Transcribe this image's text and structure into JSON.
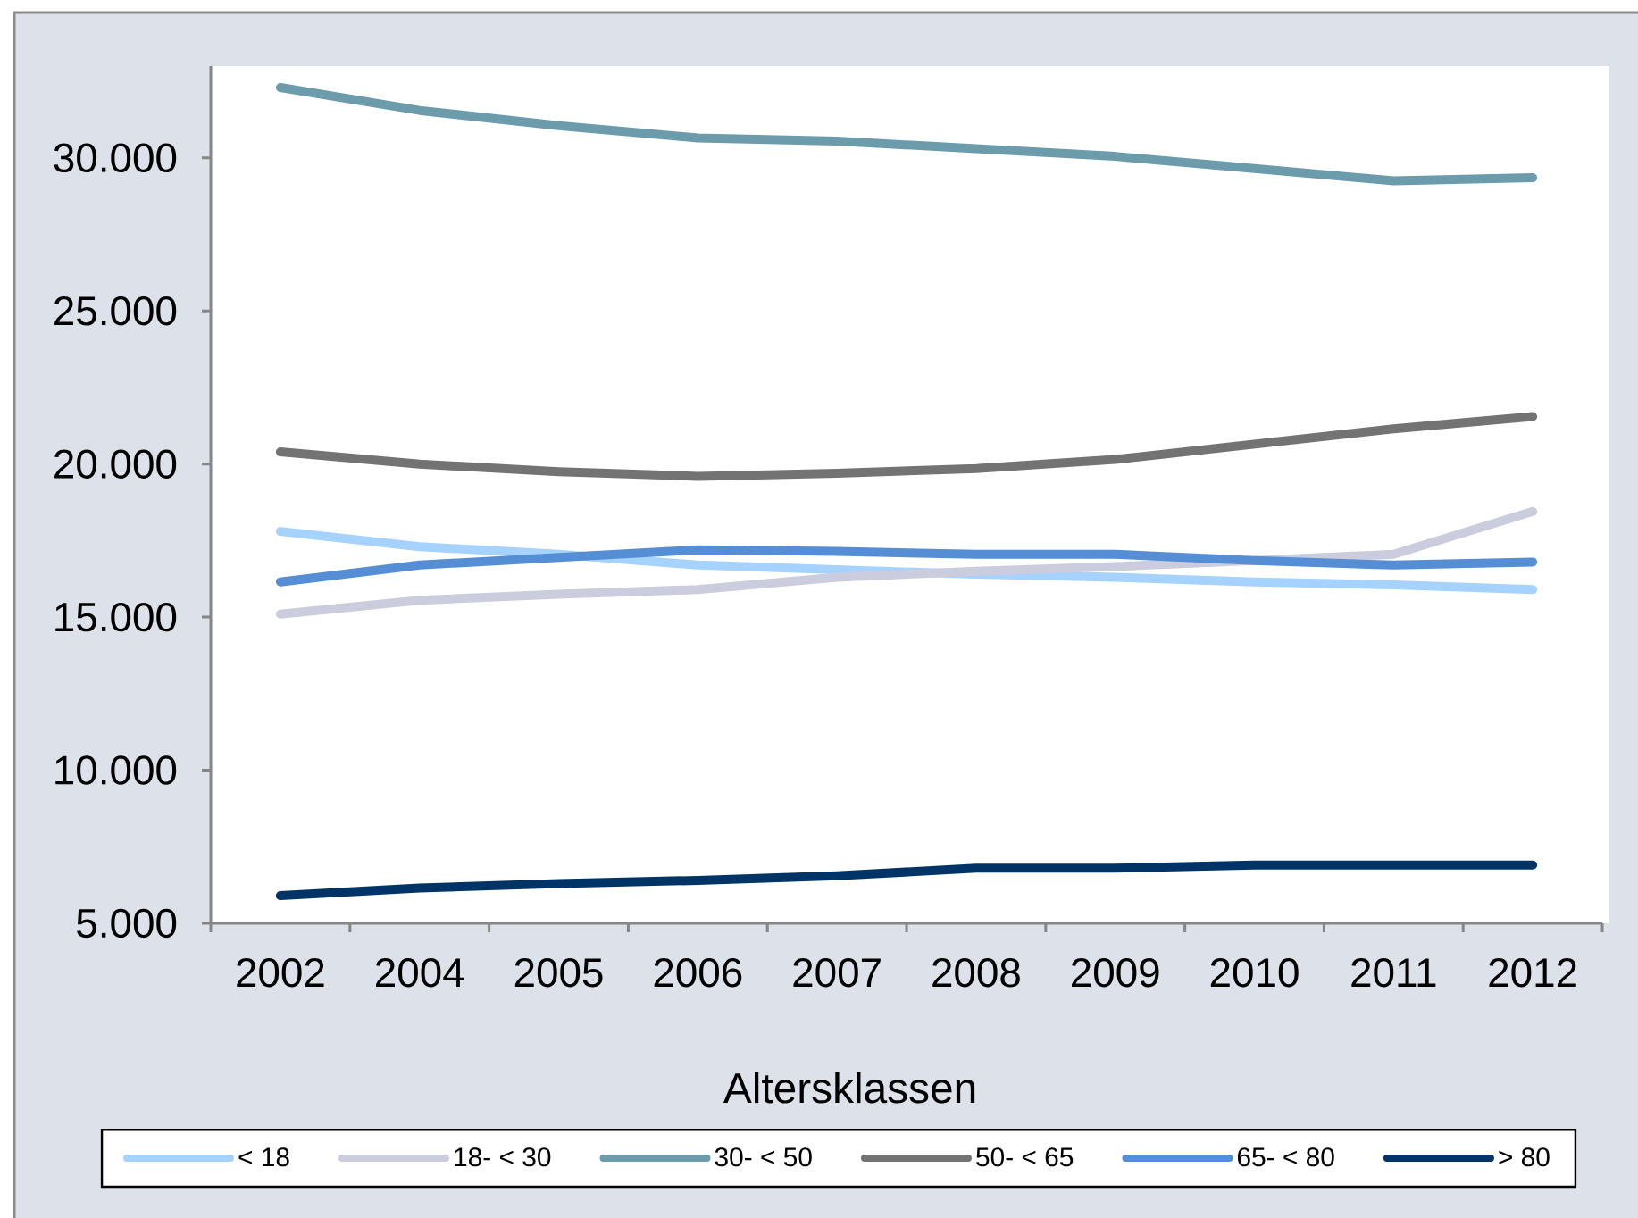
{
  "chart_data": {
    "type": "line",
    "xlabel": "Altersklassen",
    "categories": [
      "2002",
      "2004",
      "2005",
      "2006",
      "2007",
      "2008",
      "2009",
      "2010",
      "2011",
      "2012"
    ],
    "ylim": [
      5000,
      33000
    ],
    "yticks": [
      {
        "value": 5000,
        "label": "5.000"
      },
      {
        "value": 10000,
        "label": "10.000"
      },
      {
        "value": 15000,
        "label": "15.000"
      },
      {
        "value": 20000,
        "label": "20.000"
      },
      {
        "value": 25000,
        "label": "25.000"
      },
      {
        "value": 30000,
        "label": "30.000"
      }
    ],
    "legend": "bottom",
    "marker": "none",
    "line_style": "solid",
    "series": [
      {
        "name": "< 18",
        "color": "#a6d2ff",
        "values": [
          17800,
          17300,
          17050,
          16700,
          16550,
          16400,
          16300,
          16150,
          16050,
          15900
        ]
      },
      {
        "name": "18- < 30",
        "color": "#ccccdf",
        "values": [
          15100,
          15550,
          15750,
          15900,
          16300,
          16500,
          16650,
          16850,
          17050,
          18450
        ]
      },
      {
        "name": "30- < 50",
        "color": "#6c9bab",
        "values": [
          32300,
          31550,
          31050,
          30650,
          30550,
          30300,
          30050,
          29650,
          29250,
          29350
        ]
      },
      {
        "name": "50- < 65",
        "color": "#737373",
        "values": [
          20400,
          20000,
          19750,
          19600,
          19700,
          19850,
          20150,
          20650,
          21150,
          21550
        ]
      },
      {
        "name": "65- < 80",
        "color": "#558ed5",
        "values": [
          16150,
          16700,
          16950,
          17200,
          17150,
          17050,
          17050,
          16850,
          16700,
          16800
        ]
      },
      {
        "name": "> 80",
        "color": "#003366",
        "values": [
          5900,
          6150,
          6300,
          6400,
          6550,
          6800,
          6800,
          6900,
          6900,
          6900
        ]
      }
    ]
  }
}
